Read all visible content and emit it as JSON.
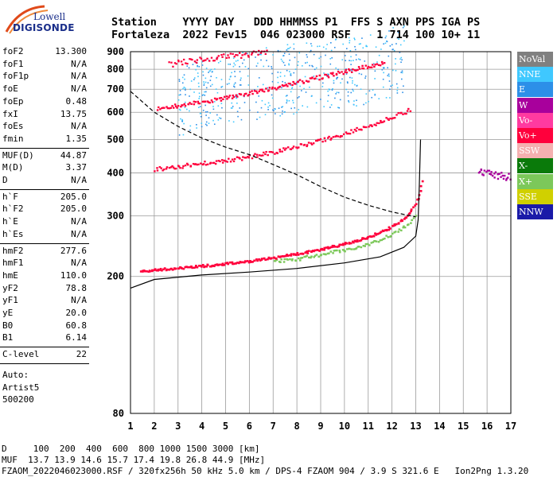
{
  "logo": {
    "line1": "Lowell",
    "line2": "DIGISONDE"
  },
  "header": {
    "line1": "Station    YYYY DAY   DDD HHMMSS P1  FFS S AXN PPS IGA PS",
    "line2": "Fortaleza  2022 Fev15  046 023000 RSF    1 714 100 10+ 11"
  },
  "params": [
    {
      "name": "foF2",
      "value": "13.300"
    },
    {
      "name": "foF1",
      "value": "N/A"
    },
    {
      "name": "foF1p",
      "value": "N/A"
    },
    {
      "name": "foE",
      "value": "N/A"
    },
    {
      "name": "foEp",
      "value": "0.48"
    },
    {
      "name": "fxI",
      "value": "13.75"
    },
    {
      "name": "foEs",
      "value": "N/A"
    },
    {
      "name": "fmin",
      "value": "1.35"
    },
    {
      "name": "MUF(D)",
      "value": "44.87"
    },
    {
      "name": "M(D)",
      "value": "3.37"
    },
    {
      "name": "D",
      "value": "N/A"
    },
    {
      "name": "h`F",
      "value": "205.0"
    },
    {
      "name": "h`F2",
      "value": "205.0"
    },
    {
      "name": "h`E",
      "value": "N/A"
    },
    {
      "name": "h`Es",
      "value": "N/A"
    },
    {
      "name": "hmF2",
      "value": "277.6"
    },
    {
      "name": "hmF1",
      "value": "N/A"
    },
    {
      "name": "hmE",
      "value": "110.0"
    },
    {
      "name": "yF2",
      "value": "78.8"
    },
    {
      "name": "yF1",
      "value": "N/A"
    },
    {
      "name": "yE",
      "value": "20.0"
    },
    {
      "name": "B0",
      "value": "60.8"
    },
    {
      "name": "B1",
      "value": "6.14"
    },
    {
      "name": "C-level",
      "value": "22"
    }
  ],
  "auto_block": [
    "Auto:",
    "Artist5",
    "500200"
  ],
  "legend": [
    {
      "label": "NoVal",
      "color": "#808080"
    },
    {
      "label": "NNE",
      "color": "#3fc8ff"
    },
    {
      "label": "E",
      "color": "#2c8fe8"
    },
    {
      "label": "W",
      "color": "#a8009c"
    },
    {
      "label": "Vo-",
      "color": "#ff3aa0"
    },
    {
      "label": "Vo+",
      "color": "#ff003c"
    },
    {
      "label": "SSW",
      "color": "#f5b0b0"
    },
    {
      "label": "X-",
      "color": "#0a7a0a"
    },
    {
      "label": "X+",
      "color": "#7cc85a"
    },
    {
      "label": "SSE",
      "color": "#d0d000"
    },
    {
      "label": "NNW",
      "color": "#1a1aa8"
    }
  ],
  "footer": {
    "line1": "D     100  200  400  600  800 1000 1500 3000 [km]",
    "line2": "MUF  13.7 13.9 14.6 15.7 17.4 19.8 26.8 44.9 [MHz]",
    "line3": "FZAOM_2022046023000.RSF / 320fx256h 50 kHz 5.0 km / DPS-4 FZAOM 904 / 3.9 S 321.6 E   Ion2Png 1.3.20"
  },
  "chart_data": {
    "type": "scatter",
    "title": "",
    "xlabel": "",
    "ylabel": "",
    "xlim": [
      1,
      17
    ],
    "ylim": [
      80,
      900
    ],
    "yscale": "log",
    "grid": true,
    "x_ticks": [
      1,
      2,
      3,
      4,
      5,
      6,
      7,
      8,
      9,
      10,
      11,
      12,
      13,
      14,
      15,
      16,
      17
    ],
    "y_ticks": [
      80,
      200,
      300,
      400,
      500,
      600,
      700,
      800,
      900
    ],
    "traces": [
      {
        "name": "1st hop O",
        "color": "#ff003c",
        "x": [
          1.4,
          2.0,
          3.0,
          4.0,
          5.0,
          6.0,
          7.0,
          8.0,
          9.0,
          10.0,
          11.0,
          11.8,
          12.4,
          12.8,
          13.1,
          13.3
        ],
        "y": [
          208,
          210,
          213,
          216,
          219,
          223,
          228,
          234,
          241,
          250,
          262,
          276,
          293,
          313,
          345,
          390
        ]
      },
      {
        "name": "1st hop X",
        "color": "#7cc85a",
        "x": [
          7.0,
          8.0,
          9.0,
          10.0,
          11.0,
          12.0,
          12.7,
          13.0
        ],
        "y": [
          222,
          226,
          233,
          240,
          250,
          266,
          285,
          305
        ]
      },
      {
        "name": "2nd hop O",
        "color": "#ff003c",
        "x": [
          2.0,
          3.0,
          4.0,
          5.0,
          6.0,
          7.0,
          8.0,
          9.0,
          10.0,
          11.0,
          11.8,
          12.4,
          12.8
        ],
        "y": [
          412,
          420,
          428,
          437,
          448,
          462,
          480,
          500,
          523,
          550,
          578,
          600,
          615
        ]
      },
      {
        "name": "3rd hop O",
        "color": "#ff003c",
        "x": [
          2.1,
          3.0,
          4.0,
          5.0,
          6.0,
          7.0,
          8.0,
          9.0,
          10.0,
          11.0,
          11.7
        ],
        "y": [
          620,
          630,
          645,
          663,
          685,
          710,
          737,
          764,
          792,
          820,
          845
        ]
      },
      {
        "name": "4th hop O",
        "color": "#ff003c",
        "x": [
          2.6,
          3.0,
          4.0,
          5.0,
          6.0,
          6.8
        ],
        "y": [
          830,
          842,
          858,
          875,
          890,
          900
        ]
      },
      {
        "name": "spread F",
        "color": "#3fc8ff",
        "x": [
          3.0,
          5.0,
          7.0,
          9.0,
          11.0,
          12.5
        ],
        "y": [
          650,
          690,
          740,
          770,
          805,
          850
        ]
      },
      {
        "name": "W echoes",
        "color": "#a8009c",
        "x": [
          15.6,
          16.0,
          16.5,
          17.0
        ],
        "y": [
          408,
          400,
          396,
          390
        ]
      },
      {
        "name": "O-trace model",
        "color": "#000000",
        "x": [
          1.0,
          2.0,
          4.0,
          6.0,
          8.0,
          10.0,
          11.5,
          12.5,
          13.0,
          13.1,
          13.15,
          13.2
        ],
        "y": [
          185,
          196,
          202,
          206,
          211,
          219,
          228,
          243,
          262,
          292,
          370,
          500
        ]
      },
      {
        "name": "MUF curve",
        "color": "#000000",
        "x": [
          1.0,
          2.0,
          3.0,
          4.0,
          5.0,
          6.0,
          7.0,
          8.0,
          9.0,
          10.0,
          11.0,
          12.0,
          13.0
        ],
        "y": [
          690,
          600,
          546,
          505,
          475,
          452,
          423,
          395,
          365,
          340,
          322,
          308,
          298
        ]
      }
    ]
  }
}
